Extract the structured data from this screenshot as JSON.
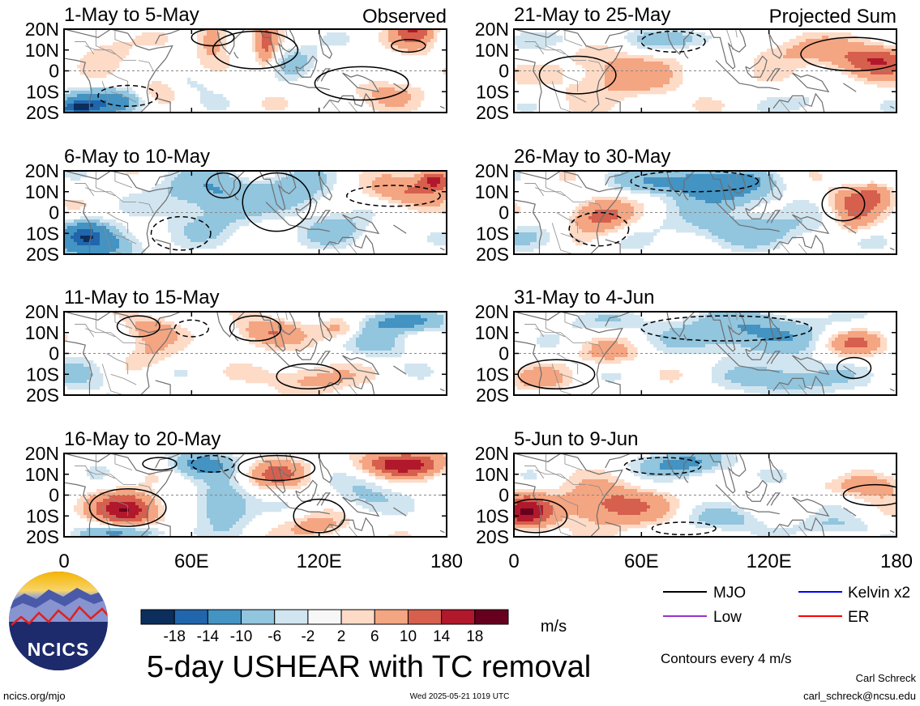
{
  "figure": {
    "title": "5-day USHEAR with TC removal",
    "units": "m/s",
    "contour_note": "Contours every 4 m/s",
    "columns": [
      {
        "tag": "Observed"
      },
      {
        "tag": "Projected Sum"
      }
    ],
    "panels": [
      {
        "col": 0,
        "row": 0,
        "title": "1-May to 5-May"
      },
      {
        "col": 0,
        "row": 1,
        "title": "6-May to 10-May"
      },
      {
        "col": 0,
        "row": 2,
        "title": "11-May to 15-May"
      },
      {
        "col": 0,
        "row": 3,
        "title": "16-May to 20-May"
      },
      {
        "col": 1,
        "row": 0,
        "title": "21-May to 25-May"
      },
      {
        "col": 1,
        "row": 1,
        "title": "26-May to 30-May"
      },
      {
        "col": 1,
        "row": 2,
        "title": "31-May to 4-Jun"
      },
      {
        "col": 1,
        "row": 3,
        "title": "5-Jun to 9-Jun"
      }
    ],
    "lat_ticks": [
      "20N",
      "10N",
      "0",
      "10S",
      "20S"
    ],
    "lon_ticks": [
      "0",
      "60E",
      "120E",
      "180"
    ],
    "colorbar": {
      "colors": [
        "#0b2e5c",
        "#2166ac",
        "#4393c3",
        "#92c5de",
        "#d1e5f0",
        "#f7f7f7",
        "#fddbc7",
        "#f4a582",
        "#d6604d",
        "#b2182b",
        "#67001f"
      ],
      "ticks": [
        "-18",
        "-14",
        "-10",
        "-6",
        "-2",
        "2",
        "6",
        "10",
        "14",
        "18"
      ]
    },
    "legend": [
      {
        "label": "MJO",
        "color": "#000000"
      },
      {
        "label": "Kelvin x2",
        "color": "#0000ff"
      },
      {
        "label": "Low",
        "color": "#9932cc"
      },
      {
        "label": "ER",
        "color": "#ff0000"
      }
    ],
    "footer": {
      "left": "ncics.org/mjo",
      "center": "Wed 2025-05-21 1019 UTC",
      "author": "Carl Schreck",
      "email": "carl_schreck@ncsu.edu"
    },
    "logo": {
      "text": "NCICS"
    }
  },
  "fields": [
    {
      "blobs": [
        [
          13,
          95,
          14,
          5,
          8
        ],
        [
          22,
          165,
          11,
          10,
          12
        ],
        [
          15,
          70,
          9,
          8,
          8
        ],
        [
          -8,
          45,
          8,
          10,
          5
        ],
        [
          -15,
          20,
          6,
          20,
          -12
        ],
        [
          -18,
          5,
          4,
          12,
          -14
        ],
        [
          5,
          110,
          8,
          10,
          -5
        ],
        [
          0,
          135,
          6,
          8,
          -4
        ],
        [
          -10,
          150,
          8,
          20,
          4
        ],
        [
          10,
          20,
          8,
          12,
          4
        ],
        [
          -5,
          60,
          6,
          15,
          -3
        ]
      ],
      "contours": [
        {
          "lat": 10,
          "lon": 90,
          "dlat": 9,
          "dlon": 20,
          "solid": true
        },
        {
          "lat": 16,
          "lon": 70,
          "dlat": 4,
          "dlon": 10,
          "solid": true
        },
        {
          "lat": 12,
          "lon": 162,
          "dlat": 3,
          "dlon": 8,
          "solid": true
        },
        {
          "lat": -12,
          "lon": 30,
          "dlat": 5,
          "dlon": 14,
          "solid": false
        },
        {
          "lat": -6,
          "lon": 140,
          "dlat": 8,
          "dlon": 22,
          "solid": true
        }
      ]
    },
    {
      "blobs": [
        [
          10,
          70,
          10,
          25,
          -8
        ],
        [
          -15,
          15,
          8,
          20,
          -12
        ],
        [
          -10,
          10,
          6,
          10,
          -10
        ],
        [
          10,
          110,
          10,
          15,
          -7
        ],
        [
          10,
          160,
          7,
          18,
          8
        ],
        [
          16,
          175,
          5,
          8,
          14
        ],
        [
          -8,
          130,
          8,
          15,
          -6
        ],
        [
          -5,
          70,
          10,
          20,
          -4
        ]
      ],
      "contours": [
        {
          "lat": 13,
          "lon": 75,
          "dlat": 6,
          "dlon": 8,
          "solid": true
        },
        {
          "lat": 5,
          "lon": 100,
          "dlat": 14,
          "dlon": 16,
          "solid": true
        },
        {
          "lat": 8,
          "lon": 155,
          "dlat": 5,
          "dlon": 22,
          "solid": false
        },
        {
          "lat": -10,
          "lon": 55,
          "dlat": 8,
          "dlon": 14,
          "solid": false
        }
      ]
    },
    {
      "blobs": [
        [
          10,
          95,
          7,
          15,
          8
        ],
        [
          12,
          40,
          6,
          12,
          6
        ],
        [
          15,
          160,
          5,
          20,
          -10
        ],
        [
          0,
          40,
          8,
          12,
          4
        ],
        [
          -12,
          115,
          7,
          20,
          6
        ],
        [
          5,
          150,
          8,
          15,
          -5
        ],
        [
          -10,
          10,
          8,
          15,
          -5
        ],
        [
          12,
          130,
          5,
          10,
          6
        ]
      ],
      "contours": [
        {
          "lat": 12,
          "lon": 90,
          "dlat": 6,
          "dlon": 12,
          "solid": true
        },
        {
          "lat": 13,
          "lon": 35,
          "dlat": 5,
          "dlon": 10,
          "solid": true
        },
        {
          "lat": -11,
          "lon": 115,
          "dlat": 6,
          "dlon": 15,
          "solid": true
        },
        {
          "lat": 12,
          "lon": 60,
          "dlat": 4,
          "dlon": 8,
          "solid": false
        }
      ]
    },
    {
      "blobs": [
        [
          -7,
          30,
          8,
          15,
          16
        ],
        [
          15,
          160,
          6,
          20,
          14
        ],
        [
          10,
          100,
          7,
          15,
          8
        ],
        [
          15,
          65,
          6,
          15,
          -10
        ],
        [
          -5,
          75,
          10,
          12,
          -10
        ],
        [
          -18,
          30,
          4,
          20,
          -10
        ],
        [
          -15,
          120,
          6,
          15,
          6
        ],
        [
          0,
          140,
          8,
          15,
          -5
        ]
      ],
      "contours": [
        {
          "lat": -6,
          "lon": 30,
          "dlat": 9,
          "dlon": 18,
          "solid": true
        },
        {
          "lat": 13,
          "lon": 100,
          "dlat": 6,
          "dlon": 18,
          "solid": true
        },
        {
          "lat": 15,
          "lon": 45,
          "dlat": 3,
          "dlon": 8,
          "solid": true
        },
        {
          "lat": 15,
          "lon": 70,
          "dlat": 4,
          "dlon": 10,
          "solid": false
        },
        {
          "lat": -10,
          "lon": 120,
          "dlat": 8,
          "dlon": 12,
          "solid": true
        }
      ]
    },
    {
      "blobs": [
        [
          5,
          170,
          8,
          20,
          12
        ],
        [
          10,
          130,
          8,
          20,
          5
        ],
        [
          -2,
          50,
          12,
          30,
          6
        ],
        [
          15,
          80,
          5,
          25,
          -6
        ],
        [
          15,
          25,
          5,
          15,
          -3
        ],
        [
          -15,
          140,
          5,
          15,
          -3
        ]
      ],
      "contours": [
        {
          "lat": -2,
          "lon": 30,
          "dlat": 9,
          "dlon": 18,
          "solid": true
        },
        {
          "lat": 8,
          "lon": 160,
          "dlat": 8,
          "dlon": 25,
          "solid": true
        },
        {
          "lat": 14,
          "lon": 75,
          "dlat": 5,
          "dlon": 15,
          "solid": false
        }
      ]
    },
    {
      "blobs": [
        [
          -2,
          40,
          8,
          14,
          10
        ],
        [
          15,
          85,
          6,
          30,
          -12
        ],
        [
          8,
          100,
          8,
          20,
          -8
        ],
        [
          -8,
          110,
          8,
          40,
          -6
        ],
        [
          5,
          160,
          7,
          12,
          9
        ],
        [
          10,
          170,
          6,
          8,
          6
        ],
        [
          -5,
          160,
          6,
          10,
          6
        ],
        [
          -12,
          10,
          6,
          15,
          -4
        ]
      ],
      "contours": [
        {
          "lat": 4,
          "lon": 155,
          "dlat": 8,
          "dlon": 10,
          "solid": true
        },
        {
          "lat": 15,
          "lon": 85,
          "dlat": 5,
          "dlon": 30,
          "solid": false
        },
        {
          "lat": -8,
          "lon": 40,
          "dlat": 8,
          "dlon": 14,
          "solid": false
        }
      ]
    },
    {
      "blobs": [
        [
          0,
          45,
          6,
          15,
          5
        ],
        [
          10,
          110,
          10,
          35,
          -9
        ],
        [
          -12,
          130,
          8,
          25,
          -7
        ],
        [
          5,
          160,
          6,
          15,
          8
        ],
        [
          -12,
          10,
          6,
          15,
          5
        ],
        [
          15,
          40,
          5,
          25,
          -3
        ]
      ],
      "contours": [
        {
          "lat": -7,
          "lon": 160,
          "dlat": 5,
          "dlon": 8,
          "solid": true
        },
        {
          "lat": 12,
          "lon": 100,
          "dlat": 6,
          "dlon": 40,
          "solid": false
        },
        {
          "lat": -10,
          "lon": 20,
          "dlat": 7,
          "dlon": 18,
          "solid": true
        }
      ]
    },
    {
      "blobs": [
        [
          -5,
          45,
          10,
          25,
          10
        ],
        [
          -8,
          5,
          8,
          12,
          14
        ],
        [
          15,
          80,
          6,
          20,
          -10
        ],
        [
          -12,
          100,
          6,
          20,
          -5
        ],
        [
          5,
          170,
          7,
          18,
          7
        ],
        [
          -15,
          150,
          5,
          20,
          -4
        ],
        [
          10,
          150,
          5,
          10,
          -3
        ]
      ],
      "contours": [
        {
          "lat": -10,
          "lon": 10,
          "dlat": 8,
          "dlon": 15,
          "solid": true
        },
        {
          "lat": 14,
          "lon": 70,
          "dlat": 4,
          "dlon": 18,
          "solid": false
        },
        {
          "lat": 0,
          "lon": 170,
          "dlat": 5,
          "dlon": 15,
          "solid": true
        },
        {
          "lat": -16,
          "lon": 80,
          "dlat": 3,
          "dlon": 15,
          "solid": false
        }
      ]
    }
  ]
}
